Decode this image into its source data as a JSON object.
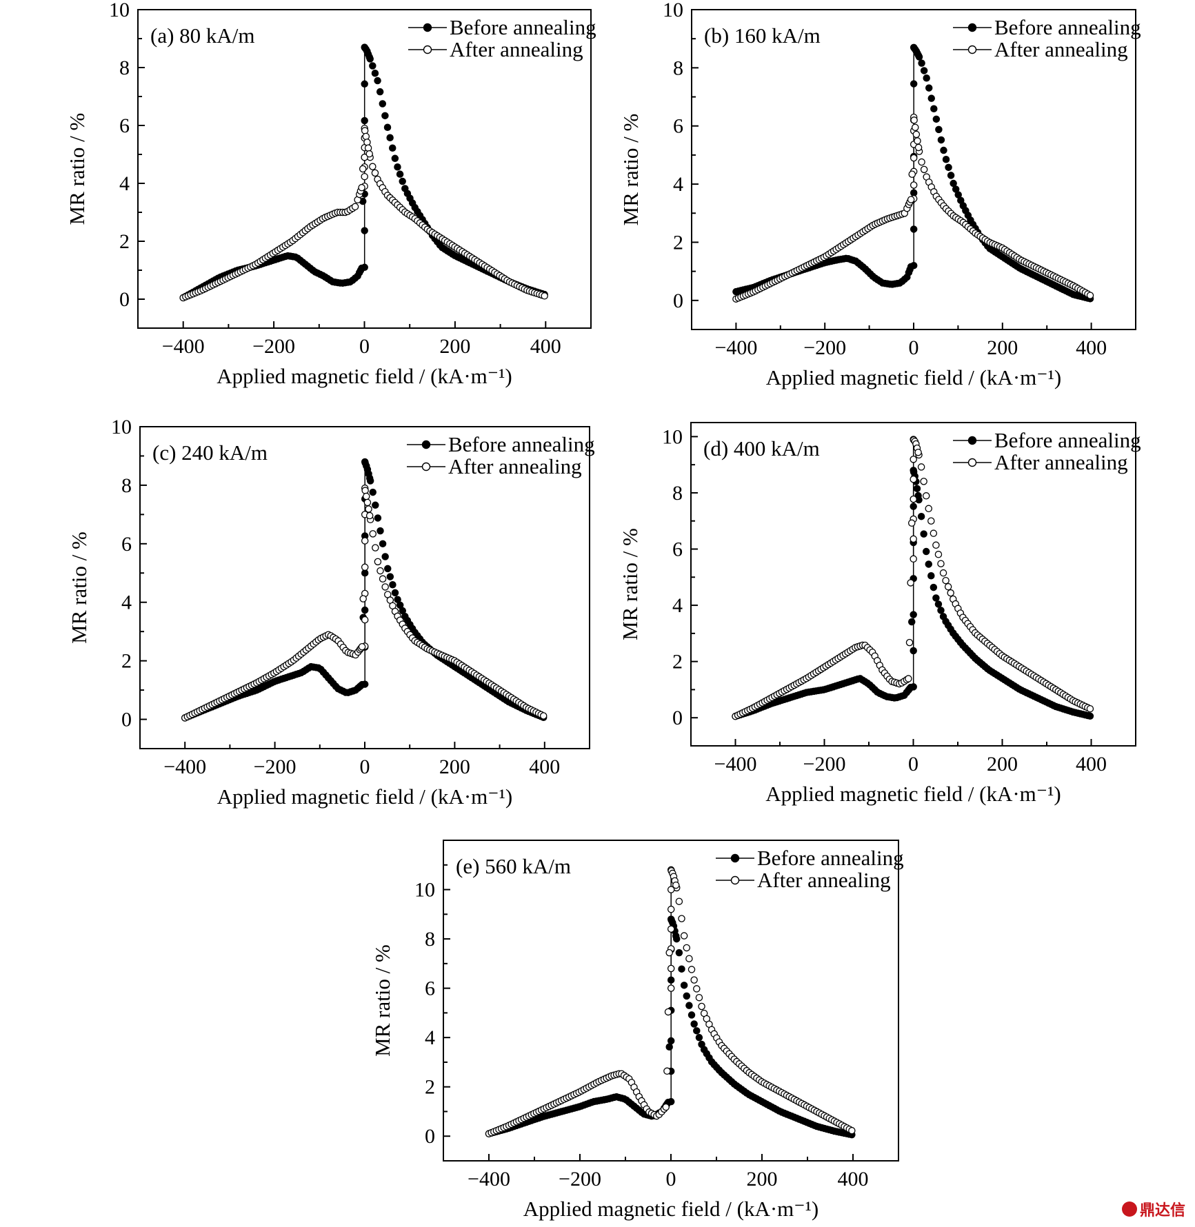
{
  "figure": {
    "watermark_text": "鼎达信",
    "watermark_color": "#c8161d"
  },
  "chart_data": [
    {
      "type": "scatter",
      "panel_label": "(a) 80 kA/m",
      "xlabel": "Applied magnetic field / (kA·m⁻¹)",
      "ylabel": "MR ratio / %",
      "xlim": [
        -500,
        500
      ],
      "ylim": [
        -1,
        10
      ],
      "xticks": [
        -400,
        -200,
        0,
        200,
        400
      ],
      "yticks": [
        0,
        2,
        4,
        6,
        8,
        10
      ],
      "legend": "top-right",
      "series": [
        {
          "name": "Before annealing",
          "marker": "filled-circle",
          "x": [
            -400,
            -360,
            -320,
            -280,
            -240,
            -200,
            -170,
            -150,
            -130,
            -110,
            -90,
            -70,
            -50,
            -30,
            -15,
            -5,
            0,
            5,
            15,
            30,
            50,
            70,
            90,
            110,
            130,
            150,
            170,
            200,
            240,
            280,
            320,
            360,
            400
          ],
          "y": [
            0.05,
            0.4,
            0.75,
            1.0,
            1.15,
            1.35,
            1.5,
            1.45,
            1.2,
            0.95,
            0.8,
            0.6,
            0.55,
            0.6,
            0.8,
            1.1,
            8.7,
            8.6,
            8.2,
            7.5,
            6.0,
            4.7,
            3.8,
            3.2,
            2.7,
            2.2,
            1.8,
            1.5,
            1.2,
            0.9,
            0.6,
            0.35,
            0.15
          ]
        },
        {
          "name": "After annealing",
          "marker": "open-circle",
          "x": [
            -400,
            -360,
            -320,
            -280,
            -240,
            -200,
            -160,
            -120,
            -90,
            -60,
            -40,
            -20,
            -5,
            0,
            5,
            15,
            30,
            50,
            70,
            90,
            110,
            140,
            170,
            200,
            240,
            280,
            320,
            360,
            400
          ],
          "y": [
            0.05,
            0.3,
            0.6,
            0.9,
            1.2,
            1.6,
            2.0,
            2.5,
            2.8,
            3.0,
            3.0,
            3.2,
            3.9,
            5.9,
            5.5,
            4.7,
            4.1,
            3.6,
            3.3,
            3.0,
            2.8,
            2.4,
            2.1,
            1.8,
            1.4,
            1.0,
            0.6,
            0.3,
            0.1
          ]
        }
      ]
    },
    {
      "type": "scatter",
      "panel_label": "(b) 160 kA/m",
      "xlabel": "Applied magnetic field / (kA·m⁻¹)",
      "ylabel": "MR ratio / %",
      "xlim": [
        -500,
        500
      ],
      "ylim": [
        -1,
        10
      ],
      "xticks": [
        -400,
        -200,
        0,
        200,
        400
      ],
      "yticks": [
        0,
        2,
        4,
        6,
        8,
        10
      ],
      "legend": "top-right",
      "series": [
        {
          "name": "Before annealing",
          "marker": "filled-circle",
          "x": [
            -400,
            -360,
            -320,
            -280,
            -240,
            -200,
            -170,
            -150,
            -130,
            -110,
            -90,
            -70,
            -50,
            -30,
            -15,
            -5,
            0,
            5,
            15,
            30,
            50,
            70,
            90,
            110,
            130,
            150,
            170,
            200,
            240,
            280,
            320,
            360,
            400
          ],
          "y": [
            0.3,
            0.45,
            0.7,
            0.9,
            1.1,
            1.3,
            1.4,
            1.45,
            1.35,
            1.1,
            0.8,
            0.6,
            0.55,
            0.6,
            0.8,
            1.2,
            8.7,
            8.6,
            8.3,
            7.6,
            6.3,
            5.0,
            4.0,
            3.3,
            2.7,
            2.2,
            1.8,
            1.5,
            1.1,
            0.8,
            0.5,
            0.2,
            0.05
          ]
        },
        {
          "name": "After annealing",
          "marker": "open-circle",
          "x": [
            -400,
            -360,
            -320,
            -280,
            -240,
            -200,
            -160,
            -120,
            -90,
            -60,
            -40,
            -20,
            -5,
            0,
            5,
            15,
            30,
            50,
            70,
            90,
            110,
            140,
            170,
            200,
            240,
            280,
            320,
            360,
            400
          ],
          "y": [
            0.05,
            0.3,
            0.6,
            0.9,
            1.2,
            1.5,
            1.9,
            2.3,
            2.6,
            2.8,
            2.9,
            3.0,
            3.5,
            6.3,
            5.8,
            4.9,
            4.2,
            3.6,
            3.2,
            2.9,
            2.7,
            2.3,
            2.0,
            1.8,
            1.4,
            1.1,
            0.8,
            0.5,
            0.15
          ]
        }
      ]
    },
    {
      "type": "scatter",
      "panel_label": "(c) 240 kA/m",
      "xlabel": "Applied magnetic field / (kA·m⁻¹)",
      "ylabel": "MR ratio / %",
      "xlim": [
        -500,
        500
      ],
      "ylim": [
        -1,
        10
      ],
      "xticks": [
        -400,
        -200,
        0,
        200,
        400
      ],
      "yticks": [
        0,
        2,
        4,
        6,
        8,
        10
      ],
      "legend": "top-right",
      "series": [
        {
          "name": "Before annealing",
          "marker": "filled-circle",
          "x": [
            -400,
            -360,
            -320,
            -280,
            -240,
            -200,
            -170,
            -140,
            -120,
            -100,
            -80,
            -60,
            -40,
            -20,
            -5,
            0,
            5,
            15,
            30,
            50,
            70,
            90,
            110,
            130,
            160,
            200,
            240,
            280,
            320,
            360,
            400
          ],
          "y": [
            0.05,
            0.3,
            0.55,
            0.8,
            1.0,
            1.3,
            1.45,
            1.6,
            1.8,
            1.75,
            1.4,
            1.05,
            0.9,
            1.0,
            1.2,
            8.8,
            8.6,
            8.0,
            6.8,
            5.2,
            4.2,
            3.5,
            3.0,
            2.6,
            2.2,
            1.8,
            1.4,
            1.0,
            0.6,
            0.3,
            0.05
          ]
        },
        {
          "name": "After annealing",
          "marker": "open-circle",
          "x": [
            -400,
            -360,
            -320,
            -280,
            -240,
            -200,
            -160,
            -120,
            -100,
            -80,
            -60,
            -40,
            -20,
            -5,
            0,
            5,
            15,
            30,
            50,
            70,
            90,
            110,
            140,
            170,
            200,
            240,
            280,
            320,
            360,
            400
          ],
          "y": [
            0.05,
            0.35,
            0.65,
            0.95,
            1.25,
            1.6,
            2.0,
            2.5,
            2.75,
            2.9,
            2.7,
            2.3,
            2.2,
            2.5,
            7.9,
            7.5,
            6.6,
            5.3,
            4.3,
            3.6,
            3.1,
            2.7,
            2.4,
            2.2,
            2.0,
            1.6,
            1.2,
            0.8,
            0.4,
            0.1
          ]
        }
      ]
    },
    {
      "type": "scatter",
      "panel_label": "(d) 400 kA/m",
      "xlabel": "Applied magnetic field / (kA·m⁻¹)",
      "ylabel": "MR ratio / %",
      "xlim": [
        -500,
        500
      ],
      "ylim": [
        -1,
        10.5
      ],
      "xticks": [
        -400,
        -200,
        0,
        200,
        400
      ],
      "yticks": [
        0,
        2,
        4,
        6,
        8,
        10
      ],
      "legend": "top-right",
      "series": [
        {
          "name": "Before annealing",
          "marker": "filled-circle",
          "x": [
            -400,
            -360,
            -320,
            -280,
            -240,
            -200,
            -170,
            -140,
            -120,
            -100,
            -80,
            -60,
            -40,
            -20,
            -5,
            0,
            5,
            15,
            30,
            50,
            70,
            90,
            110,
            140,
            170,
            200,
            240,
            280,
            320,
            360,
            400
          ],
          "y": [
            0.05,
            0.25,
            0.5,
            0.7,
            0.9,
            1.0,
            1.15,
            1.3,
            1.4,
            1.2,
            0.9,
            0.75,
            0.7,
            0.8,
            1.1,
            8.8,
            8.5,
            7.5,
            5.8,
            4.3,
            3.5,
            3.0,
            2.6,
            2.1,
            1.7,
            1.4,
            1.0,
            0.7,
            0.4,
            0.2,
            0.05
          ]
        },
        {
          "name": "After annealing",
          "marker": "open-circle",
          "x": [
            -400,
            -360,
            -320,
            -280,
            -240,
            -200,
            -160,
            -130,
            -110,
            -90,
            -70,
            -50,
            -30,
            -10,
            0,
            5,
            15,
            30,
            50,
            70,
            90,
            110,
            140,
            170,
            200,
            240,
            280,
            320,
            360,
            400
          ],
          "y": [
            0.05,
            0.35,
            0.7,
            1.05,
            1.4,
            1.8,
            2.2,
            2.5,
            2.6,
            2.3,
            1.7,
            1.3,
            1.2,
            1.4,
            9.9,
            9.8,
            9.2,
            7.8,
            6.2,
            5.0,
            4.2,
            3.6,
            3.0,
            2.6,
            2.2,
            1.8,
            1.4,
            1.0,
            0.6,
            0.3
          ]
        }
      ]
    },
    {
      "type": "scatter",
      "panel_label": "(e) 560 kA/m",
      "xlabel": "Applied magnetic field / (kA·m⁻¹)",
      "ylabel": "MR ratio / %",
      "xlim": [
        -500,
        500
      ],
      "ylim": [
        -1,
        12
      ],
      "xticks": [
        -400,
        -200,
        0,
        200,
        400
      ],
      "yticks": [
        0,
        2,
        4,
        6,
        8,
        10
      ],
      "legend": "top-right",
      "series": [
        {
          "name": "Before annealing",
          "marker": "filled-circle",
          "x": [
            -400,
            -360,
            -320,
            -280,
            -240,
            -200,
            -170,
            -140,
            -120,
            -100,
            -80,
            -60,
            -40,
            -20,
            -5,
            0,
            5,
            15,
            30,
            50,
            70,
            90,
            110,
            140,
            170,
            200,
            240,
            280,
            320,
            360,
            400
          ],
          "y": [
            0.1,
            0.3,
            0.55,
            0.8,
            1.0,
            1.2,
            1.4,
            1.5,
            1.6,
            1.5,
            1.2,
            0.9,
            0.8,
            1.0,
            1.4,
            8.8,
            8.6,
            7.8,
            6.0,
            4.6,
            3.6,
            3.0,
            2.6,
            2.1,
            1.7,
            1.4,
            1.0,
            0.7,
            0.4,
            0.2,
            0.05
          ]
        },
        {
          "name": "After annealing",
          "marker": "open-circle",
          "x": [
            -400,
            -360,
            -320,
            -280,
            -240,
            -200,
            -160,
            -130,
            -110,
            -90,
            -70,
            -50,
            -30,
            -10,
            0,
            5,
            15,
            30,
            50,
            70,
            90,
            110,
            140,
            170,
            200,
            240,
            280,
            320,
            360,
            400
          ],
          "y": [
            0.1,
            0.4,
            0.75,
            1.1,
            1.45,
            1.8,
            2.2,
            2.45,
            2.55,
            2.3,
            1.6,
            1.0,
            0.8,
            1.2,
            10.8,
            10.6,
            9.9,
            8.0,
            6.4,
            5.1,
            4.3,
            3.7,
            3.1,
            2.6,
            2.2,
            1.8,
            1.4,
            1.0,
            0.6,
            0.2
          ]
        }
      ]
    }
  ]
}
